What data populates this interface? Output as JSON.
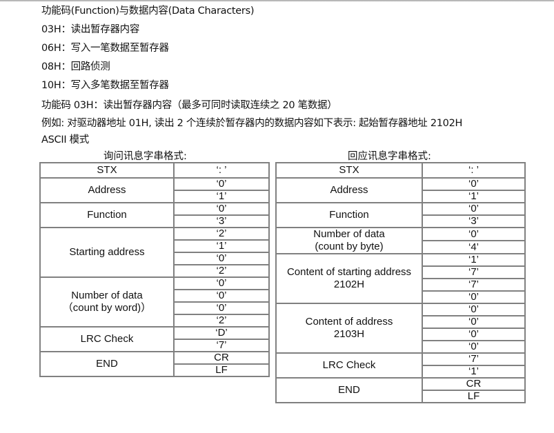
{
  "lines": [
    "功能码(Function)与数据内容(Data Characters)",
    "03H：读出暂存器内容",
    "06H：写入一笔数据至暂存器",
    "08H：回路侦测",
    "10H：写入多笔数据至暂存器",
    "功能码 03H：读出暂存器内容（最多可同时读取连续之 20 笔数据）",
    "例如: 对驱动器地址 01H, 读出 2  个连续於暂存器内的数据内容如下表示: 起始暂存器地址 2102H",
    "ASCII  模式"
  ],
  "query": {
    "caption": "询问讯息字串格式:",
    "groups": [
      {
        "label": "STX",
        "values": [
          "‘: ’"
        ]
      },
      {
        "label": "Address",
        "values": [
          "‘0’",
          "‘1’"
        ]
      },
      {
        "label": "Function",
        "values": [
          "‘0’",
          "‘3’"
        ]
      },
      {
        "label": "Starting address",
        "values": [
          "‘2’",
          "‘1’",
          "‘0’",
          "‘2’"
        ]
      },
      {
        "label": "Number of data\n（count by word)）",
        "values": [
          "‘0’",
          "‘0’",
          "‘0’",
          "‘2’"
        ]
      },
      {
        "label": "LRC Check",
        "values": [
          "‘D’",
          "‘7’"
        ]
      },
      {
        "label": "END",
        "values": [
          "CR",
          "LF"
        ]
      }
    ]
  },
  "response": {
    "caption": "回应讯息字串格式:",
    "groups": [
      {
        "label": "STX",
        "values": [
          "‘: ’"
        ]
      },
      {
        "label": "Address",
        "values": [
          "‘0’",
          "‘1’"
        ]
      },
      {
        "label": "Function",
        "values": [
          "‘0’",
          "‘3’"
        ]
      },
      {
        "label": "Number of data\n(count by byte)",
        "values": [
          "‘0’",
          "‘4’"
        ]
      },
      {
        "label": "Content of starting address\n2102H",
        "values": [
          "‘1’",
          "‘7’",
          "‘7’",
          "‘0’"
        ]
      },
      {
        "label": "Content of address\n2103H",
        "values": [
          "‘0’",
          "‘0’",
          "‘0’",
          "‘0’"
        ]
      },
      {
        "label": "LRC Check",
        "values": [
          "‘7’",
          "‘1’"
        ]
      },
      {
        "label": "END",
        "values": [
          "CR",
          "LF"
        ]
      }
    ]
  }
}
